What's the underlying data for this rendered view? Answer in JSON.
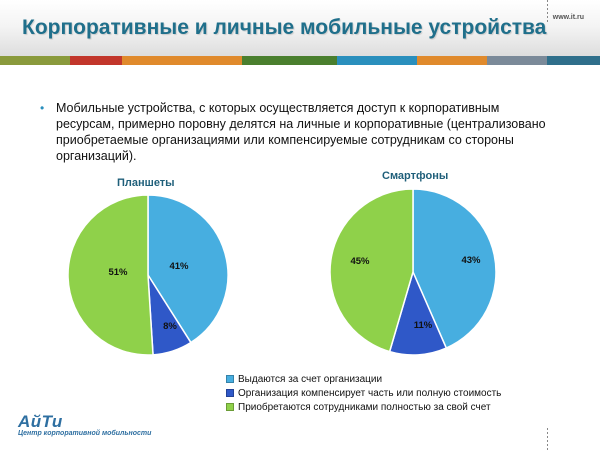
{
  "header": {
    "title": "Корпоративные и личные мобильные устройства",
    "site": "www.it.ru"
  },
  "bullet": "Мобильные устройства, с которых осуществляется доступ к корпоративным ресурсам, примерно поровну делятся на личные и корпоративные (централизовано приобретаемые организациями или компенсируемые сотрудникам со стороны организаций).",
  "footer": {
    "logo": "АйТи",
    "logo_sub": "Центр корпоративной мобильности"
  },
  "colors": {
    "stripe": [
      "#8a9a3c",
      "#c2362b",
      "#e08a2c",
      "#4a7f2e",
      "#2a8fbd",
      "#e08a2c",
      "#7b8a99",
      "#2f6f8b"
    ],
    "org": "#47aee0",
    "comp": "#2f58c8",
    "own": "#8fd14a"
  },
  "chart_data": [
    {
      "type": "pie",
      "title": "Планшеты",
      "categories": [
        "Выдаются за счет организации",
        "Организация компенсирует часть или полную стоимость",
        "Приобретаются сотрудниками полностью за свой счет"
      ],
      "values": [
        41,
        8,
        51
      ],
      "labels": [
        "41%",
        "8%",
        "51%"
      ],
      "legend": "bottom"
    },
    {
      "type": "pie",
      "title": "Смартфоны",
      "categories": [
        "Выдаются за счет организации",
        "Организация компенсирует часть или полную стоимость",
        "Приобретаются сотрудниками полностью за свой счет"
      ],
      "values": [
        43,
        11,
        45
      ],
      "labels": [
        "43%",
        "11%",
        "45%"
      ],
      "legend": "bottom"
    }
  ],
  "legend": [
    "Выдаются за счет организации",
    "Организация компенсирует часть или полную стоимость",
    "Приобретаются сотрудниками полностью за свой счет"
  ]
}
